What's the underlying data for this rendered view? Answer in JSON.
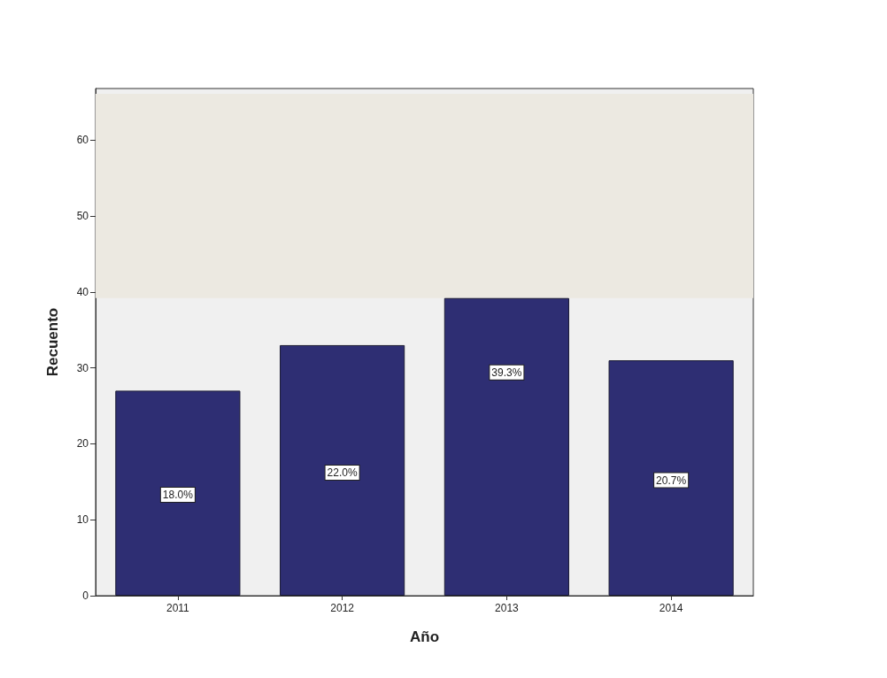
{
  "chart_data": {
    "type": "bar",
    "xlabel": "Año",
    "ylabel": "Recuento",
    "categories": [
      "2011",
      "2012",
      "2013",
      "2014"
    ],
    "values": [
      27,
      33,
      39.2,
      31
    ],
    "color": "#2e2e73",
    "annotations": [
      {
        "text": "18.0%",
        "x": "2011",
        "y": 13.3
      },
      {
        "text": "22.0%",
        "x": "2012",
        "y": 16.2
      },
      {
        "text": "39.3%",
        "x": "2013",
        "y": 29.4
      },
      {
        "text": "20.7%",
        "x": "2014",
        "y": 15.2
      }
    ],
    "ylim": [
      0,
      66.8
    ],
    "yticks": [
      0,
      10,
      20,
      30,
      40,
      50,
      60
    ],
    "grid": false,
    "bands": [
      {
        "axis": "y",
        "from": 39.2,
        "to": 66.1,
        "color": "#ece9e1"
      }
    ]
  }
}
